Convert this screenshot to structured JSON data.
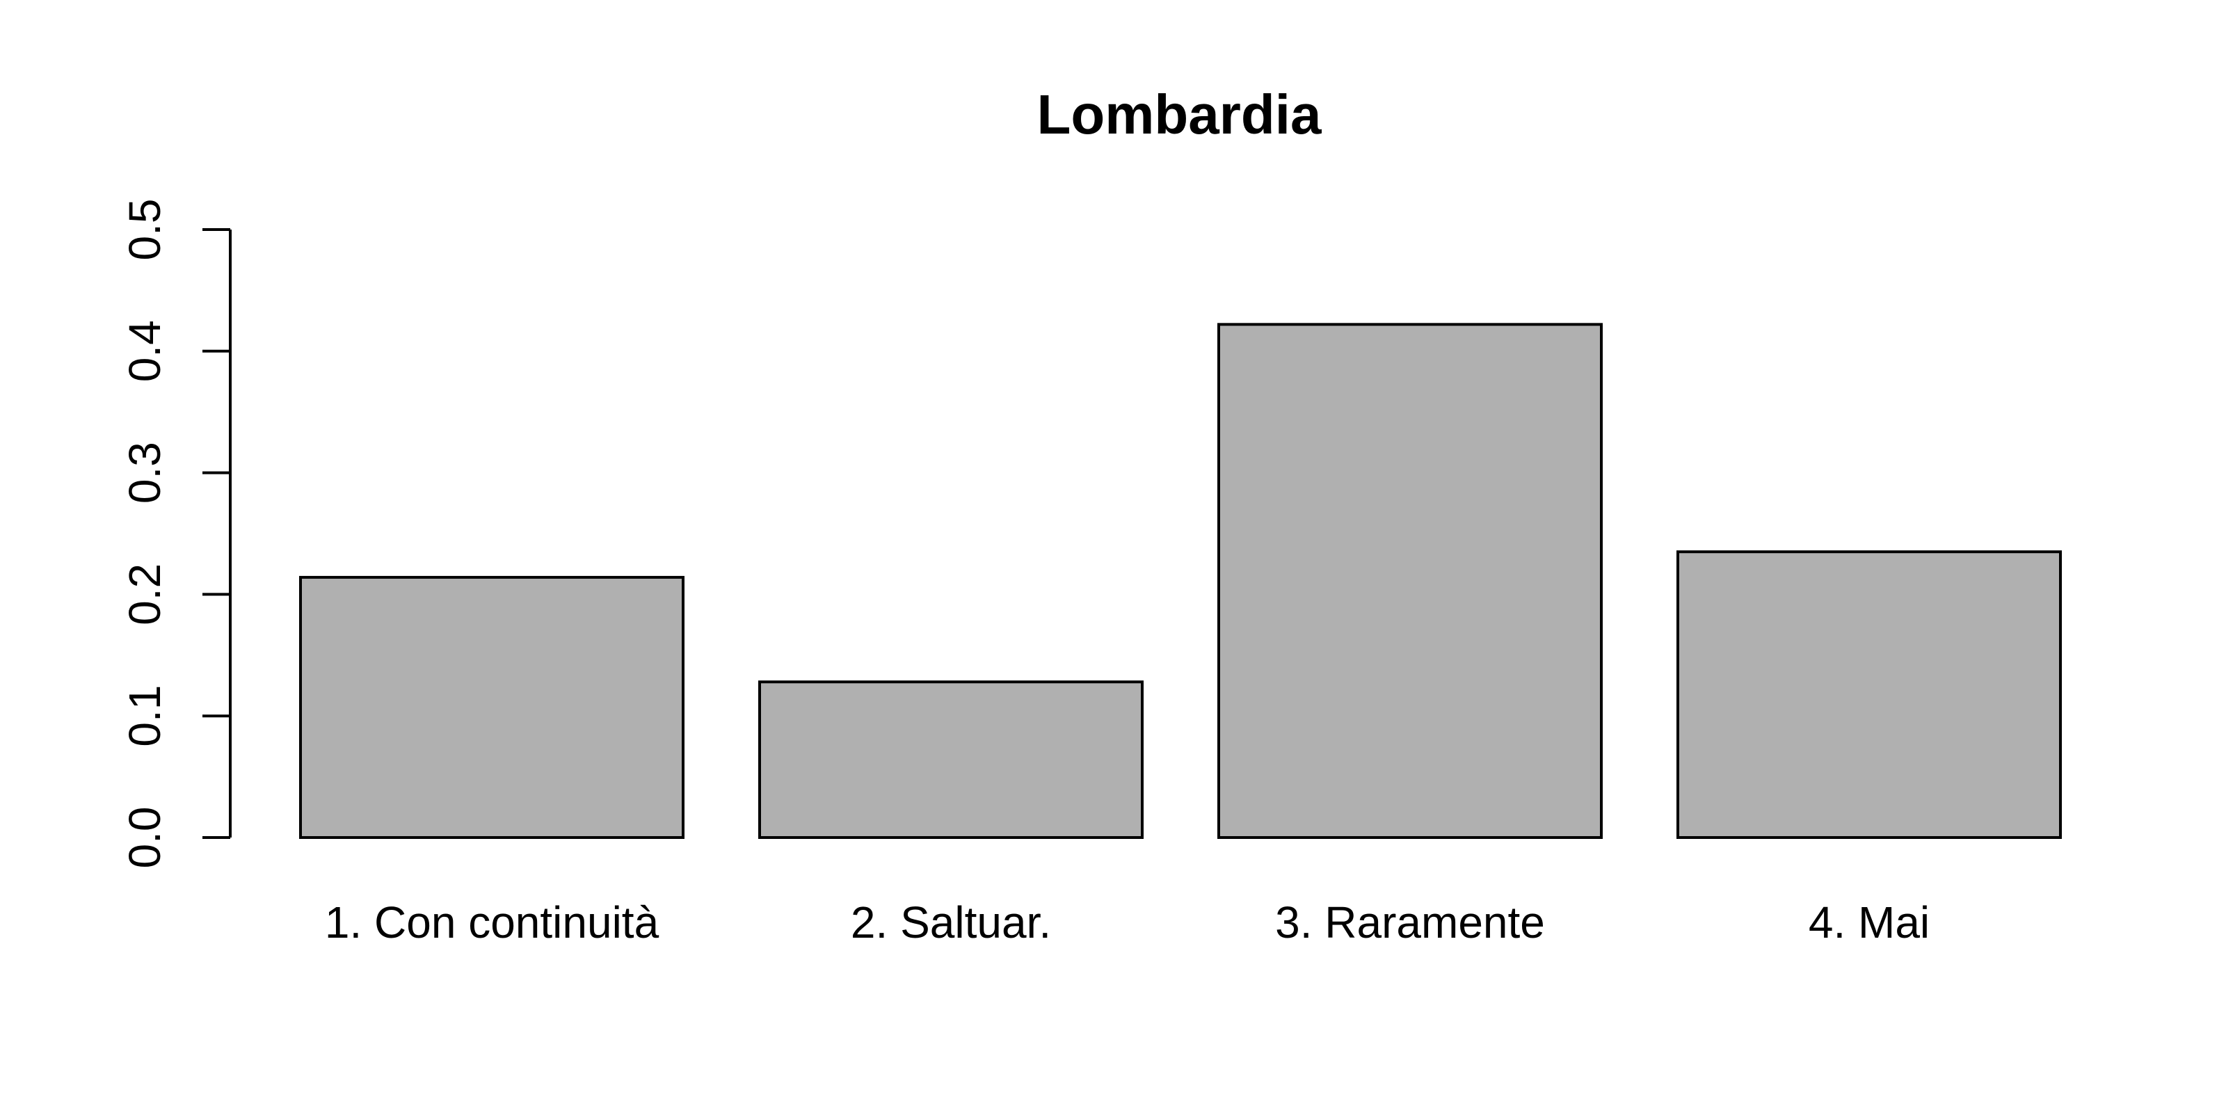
{
  "chart_data": {
    "type": "bar",
    "title": "Lombardia",
    "xlabel": "",
    "ylabel": "",
    "categories": [
      "1. Con continuità",
      "2. Saltuar.",
      "3. Raramente",
      "4. Mai"
    ],
    "values": [
      0.214,
      0.128,
      0.422,
      0.235
    ],
    "ylim": [
      0,
      0.5
    ],
    "yticks": [
      0.0,
      0.1,
      0.2,
      0.3,
      0.4,
      0.5
    ],
    "ytick_labels": [
      "0.0",
      "0.1",
      "0.2",
      "0.3",
      "0.4",
      "0.5"
    ],
    "bar_color": "#b0b0b0",
    "grid": false,
    "legend": "none"
  }
}
